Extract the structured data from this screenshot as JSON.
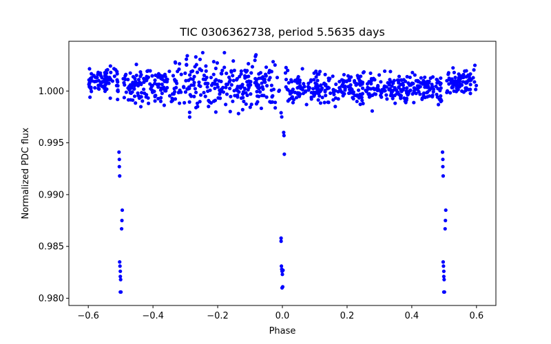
{
  "chart_data": {
    "type": "scatter",
    "title": "TIC 0306362738, period 5.5635 days",
    "xlabel": "Phase",
    "ylabel": "Normalized PDC flux",
    "xlim": [
      -0.66,
      0.66
    ],
    "ylim": [
      0.9793,
      1.0048
    ],
    "x_ticks": [
      -0.6,
      -0.4,
      -0.2,
      0.0,
      0.2,
      0.4,
      0.6
    ],
    "x_tick_labels": [
      "−0.6",
      "−0.4",
      "−0.2",
      "0.0",
      "0.2",
      "0.4",
      "0.6"
    ],
    "y_ticks": [
      0.98,
      0.985,
      0.99,
      0.995,
      1.0
    ],
    "y_tick_labels": [
      "0.980",
      "0.985",
      "0.990",
      "0.995",
      "1.000"
    ],
    "grid": false,
    "series": [
      {
        "name": "PDC flux",
        "color": "#0000ff",
        "points": [
          [
            -0.505,
            0.9941
          ],
          [
            -0.504,
            0.9934
          ],
          [
            -0.504,
            0.9927
          ],
          [
            -0.503,
            0.9918
          ],
          [
            -0.503,
            0.9835
          ],
          [
            -0.502,
            0.9831
          ],
          [
            -0.501,
            0.9826
          ],
          [
            -0.501,
            0.9821
          ],
          [
            -0.5,
            0.9818
          ],
          [
            -0.501,
            0.9806
          ],
          [
            -0.499,
            0.9806
          ],
          [
            -0.497,
            0.9867
          ],
          [
            -0.496,
            0.9875
          ],
          [
            -0.495,
            0.9885
          ],
          [
            -0.004,
            0.9858
          ],
          [
            -0.004,
            0.9855
          ],
          [
            -0.003,
            0.9831
          ],
          [
            -0.002,
            0.9828
          ],
          [
            -0.001,
            0.9826
          ],
          [
            0.0,
            0.9823
          ],
          [
            0.001,
            0.9811
          ],
          [
            -0.001,
            0.981
          ],
          [
            0.002,
            0.9827
          ],
          [
            0.004,
            0.996
          ],
          [
            0.005,
            0.9957
          ],
          [
            0.006,
            0.9939
          ],
          [
            -0.004,
            0.9979
          ],
          [
            -0.002,
            0.9975
          ],
          [
            0.495,
            0.9941
          ],
          [
            0.496,
            0.9934
          ],
          [
            0.496,
            0.9927
          ],
          [
            0.497,
            0.9918
          ],
          [
            0.497,
            0.9835
          ],
          [
            0.498,
            0.9831
          ],
          [
            0.499,
            0.9826
          ],
          [
            0.499,
            0.9821
          ],
          [
            0.5,
            0.9818
          ],
          [
            0.499,
            0.9806
          ],
          [
            0.501,
            0.9806
          ],
          [
            0.503,
            0.9867
          ],
          [
            0.504,
            0.9875
          ],
          [
            0.505,
            0.9885
          ]
        ]
      }
    ]
  }
}
